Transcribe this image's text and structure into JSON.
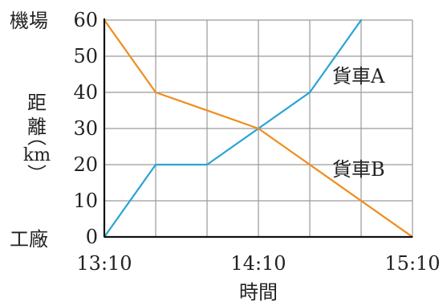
{
  "chart_data": {
    "type": "line",
    "xlabel": "時間",
    "ylabel_chars": [
      "距",
      "離"
    ],
    "ylabel_unit": "km",
    "y_top_label": "機場",
    "y_bottom_label": "工廠",
    "x_ticks": [
      {
        "minutes": 0,
        "label": "13:10"
      },
      {
        "minutes": 60,
        "label": "14:10"
      },
      {
        "minutes": 120,
        "label": "15:10"
      }
    ],
    "y_ticks": [
      0,
      10,
      20,
      30,
      40,
      50,
      60
    ],
    "xlim": [
      0,
      120
    ],
    "ylim": [
      0,
      60
    ],
    "x_grid_step": 20,
    "y_grid_step": 10,
    "grid": true,
    "series": [
      {
        "name": "貨車A",
        "color": "#29a3d6",
        "points": [
          [
            0,
            0
          ],
          [
            20,
            20
          ],
          [
            40,
            20
          ],
          [
            60,
            30
          ],
          [
            80,
            40
          ],
          [
            100,
            60
          ]
        ]
      },
      {
        "name": "貨車B",
        "color": "#f08c1e",
        "points": [
          [
            0,
            60
          ],
          [
            20,
            40
          ],
          [
            60,
            30
          ],
          [
            120,
            0
          ]
        ]
      }
    ]
  }
}
